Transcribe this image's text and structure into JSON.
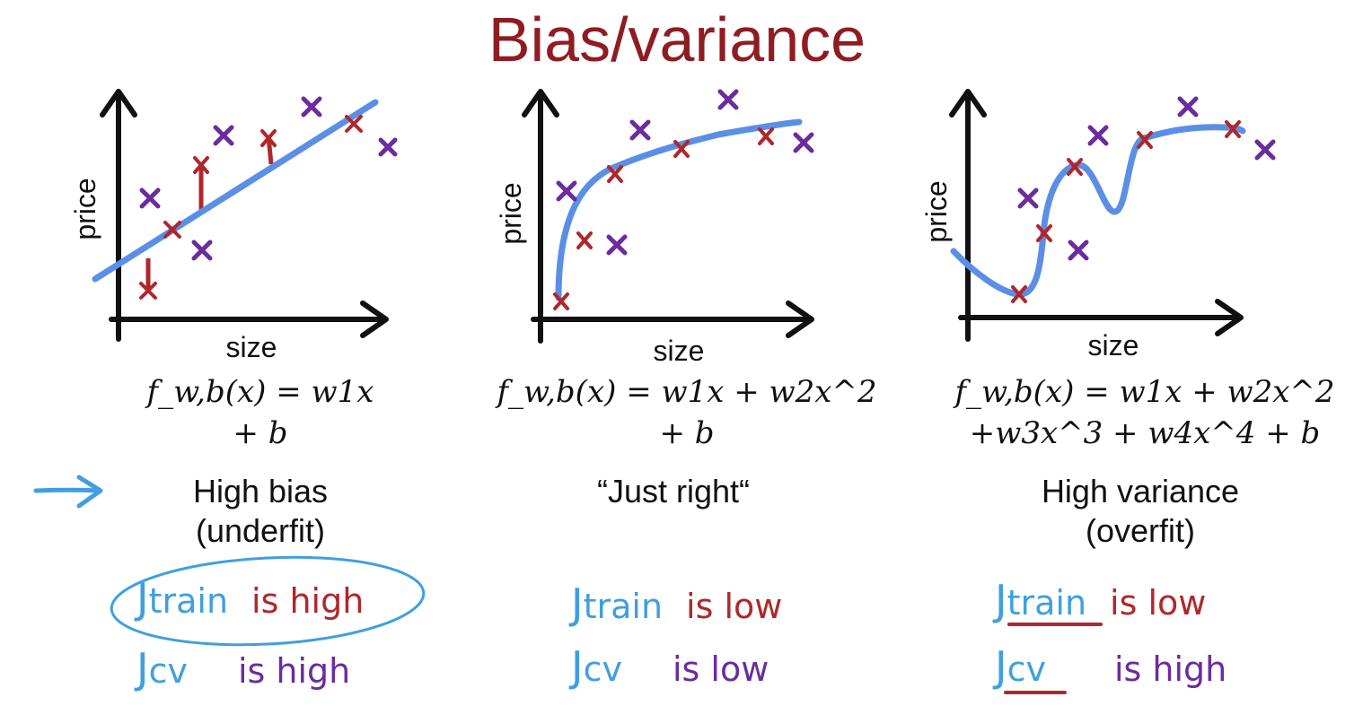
{
  "title": "Bias/variance",
  "colors": {
    "title": "#8f1c22",
    "curve": "#5b8fe6",
    "train_point": "#b0272b",
    "cv_point": "#6a2c9e",
    "ink_blue": "#3f9fe0",
    "ink_red": "#b0272b",
    "ink_purple": "#6a2c9e"
  },
  "panels": [
    {
      "id": "high-bias",
      "xlabel": "size",
      "ylabel": "price",
      "formula_line1": "f_w,b(x) = w1x",
      "formula_line2": "+ b",
      "verdict_line1": "High bias",
      "verdict_line2": "(underfit)",
      "j_train_label": "train",
      "j_train_verdict": "is high",
      "j_cv_label": "cv",
      "j_cv_verdict": "is high"
    },
    {
      "id": "just-right",
      "xlabel": "size",
      "ylabel": "price",
      "formula_line1": "f_w,b(x) = w1x + w2x^2",
      "formula_line2": "+ b",
      "verdict_line1": "“Just right“",
      "verdict_line2": "",
      "j_train_label": "train",
      "j_train_verdict": "is low",
      "j_cv_label": "cv",
      "j_cv_verdict": "is low"
    },
    {
      "id": "high-variance",
      "xlabel": "size",
      "ylabel": "price",
      "formula_line1": "f_w,b(x) = w1x + w2x^2",
      "formula_line2": "+w3x^3 + w4x^4 + b",
      "verdict_line1": "High variance",
      "verdict_line2": "(overfit)",
      "j_train_label": "train",
      "j_train_verdict": "is low",
      "j_cv_label": "cv",
      "j_cv_verdict": "is high"
    }
  ],
  "pointer": {
    "icon": "hand-drawn-arrow-icon",
    "target": "high-bias"
  },
  "annotations": {
    "circle_around": "high-bias j_train",
    "underline": "high-variance j_train and j_cv"
  }
}
